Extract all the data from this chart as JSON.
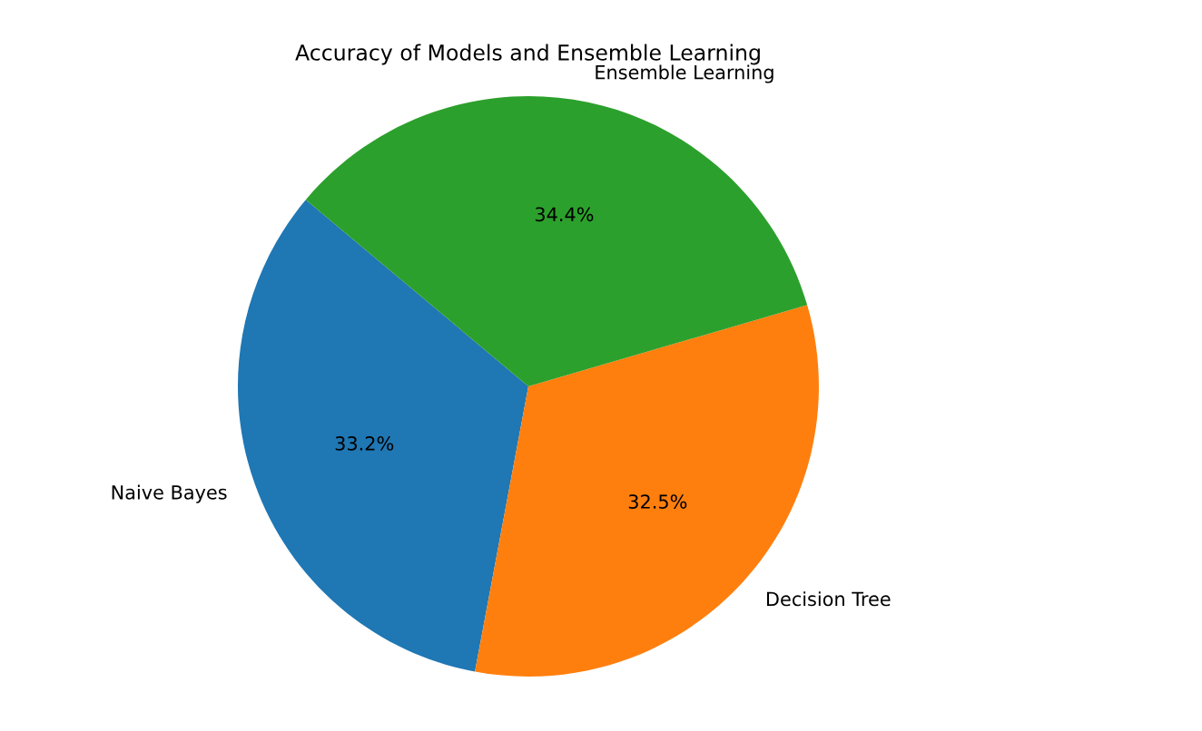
{
  "chart_data": {
    "type": "pie",
    "title": "Accuracy of Models and Ensemble Learning",
    "categories": [
      "Naive Bayes",
      "Decision Tree",
      "Ensemble Learning"
    ],
    "values": [
      33.2,
      32.5,
      34.4
    ],
    "colors": [
      "#1f77b4",
      "#ff7f0e",
      "#2ca02c"
    ],
    "value_labels": [
      "33.2%",
      "32.5%",
      "34.4%"
    ]
  }
}
